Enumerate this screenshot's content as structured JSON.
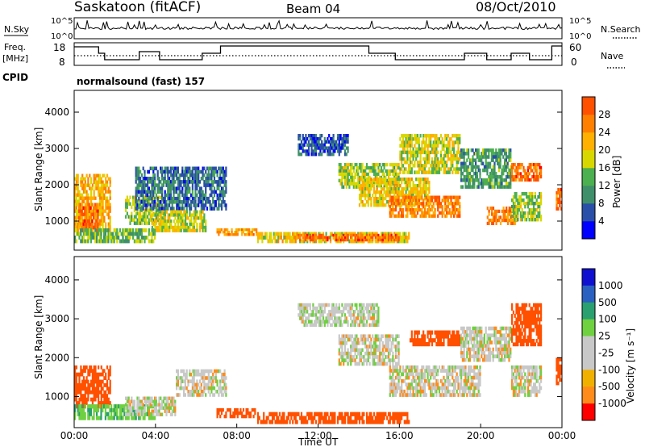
{
  "header": {
    "station": "Saskatoon (fitACF)",
    "beam": "Beam 04",
    "date": "08/Oct/2010"
  },
  "noise_panel": {
    "left_label": "N.Sky",
    "right_label": "N.Search",
    "y_ticks": [
      "10^5",
      "10^0"
    ],
    "right_ticks": [
      "10^5",
      "10^0"
    ]
  },
  "freq_panel": {
    "left_label_1": "Freq.",
    "left_label_2": "[MHz]",
    "y_ticks": [
      "18",
      "8"
    ],
    "right_label": "Nave",
    "right_ticks": [
      "60",
      "0"
    ]
  },
  "cpid": {
    "label": "CPID",
    "value": "normalsound (fast) 157"
  },
  "colors": {
    "power": [
      "#0000ff",
      "#2a4fa8",
      "#3f8f6a",
      "#4caf50",
      "#d8d800",
      "#ffb000",
      "#ff8000",
      "#ff5000",
      "#ff0000"
    ],
    "velocity": [
      "#ff0000",
      "#ff5000",
      "#ff8c1a",
      "#f0b000",
      "#c8c8c8",
      "#c8c8c8",
      "#6fd040",
      "#2aa070",
      "#2a60c0",
      "#1010d0"
    ]
  },
  "chart_data": [
    {
      "type": "heatmap",
      "name": "power",
      "ylabel": "Slant Range [km]",
      "y_ticks": [
        "1000",
        "2000",
        "3000",
        "4000"
      ],
      "ylim": [
        200,
        4600
      ],
      "colorbar_label": "Power [dB]",
      "colorbar_ticks": [
        "4",
        "8",
        "12",
        "16",
        "20",
        "24",
        "28"
      ],
      "colorbar_range": [
        0,
        32
      ],
      "regions": [
        {
          "t": [
            0.0,
            1.8
          ],
          "r": [
            700,
            2300
          ],
          "v": 22
        },
        {
          "t": [
            0.2,
            1.2
          ],
          "r": [
            600,
            1500
          ],
          "v": 28
        },
        {
          "t": [
            0.0,
            4.0
          ],
          "r": [
            400,
            800
          ],
          "v": 14
        },
        {
          "t": [
            2.5,
            4.5
          ],
          "r": [
            900,
            1700
          ],
          "v": 16
        },
        {
          "t": [
            3.0,
            7.5
          ],
          "r": [
            1300,
            2500
          ],
          "v": 8
        },
        {
          "t": [
            3.8,
            6.5
          ],
          "r": [
            700,
            1300
          ],
          "v": 18
        },
        {
          "t": [
            7.0,
            9.0
          ],
          "r": [
            600,
            800
          ],
          "v": 24
        },
        {
          "t": [
            9.0,
            16.5
          ],
          "r": [
            400,
            700
          ],
          "v": 20
        },
        {
          "t": [
            11.0,
            16.0
          ],
          "r": [
            450,
            650
          ],
          "v": 28
        },
        {
          "t": [
            11.0,
            13.5
          ],
          "r": [
            2800,
            3400
          ],
          "v": 6
        },
        {
          "t": [
            13.0,
            16.0
          ],
          "r": [
            1900,
            2600
          ],
          "v": 16
        },
        {
          "t": [
            14.0,
            17.5
          ],
          "r": [
            1400,
            2200
          ],
          "v": 20
        },
        {
          "t": [
            15.5,
            19.0
          ],
          "r": [
            1100,
            1700
          ],
          "v": 26
        },
        {
          "t": [
            16.0,
            19.0
          ],
          "r": [
            2300,
            3400
          ],
          "v": 18
        },
        {
          "t": [
            19.0,
            21.5
          ],
          "r": [
            1900,
            3000
          ],
          "v": 12
        },
        {
          "t": [
            20.3,
            21.8
          ],
          "r": [
            900,
            1400
          ],
          "v": 26
        },
        {
          "t": [
            21.5,
            23.0
          ],
          "r": [
            2100,
            2600
          ],
          "v": 28
        },
        {
          "t": [
            21.5,
            23.0
          ],
          "r": [
            1000,
            1800
          ],
          "v": 16
        },
        {
          "t": [
            23.7,
            24.0
          ],
          "r": [
            1300,
            2000
          ],
          "v": 28
        }
      ]
    },
    {
      "type": "heatmap",
      "name": "velocity",
      "ylabel": "Slant Range [km]",
      "y_ticks": [
        "1000",
        "2000",
        "3000",
        "4000"
      ],
      "ylim": [
        200,
        4600
      ],
      "xlabel": "Time UT",
      "x_ticks": [
        "00:00",
        "04:00",
        "08:00",
        "12:00",
        "16:00",
        "20:00",
        "00:00"
      ],
      "xlim": [
        0,
        24
      ],
      "colorbar_label": "Velocity [m s⁻¹]",
      "colorbar_ticks": [
        "1000",
        "500",
        "100",
        "25",
        "-25",
        "-100",
        "-500",
        "-1000"
      ],
      "regions": [
        {
          "t": [
            0.0,
            1.8
          ],
          "r": [
            700,
            1800
          ],
          "v": -300
        },
        {
          "t": [
            0.0,
            4.0
          ],
          "r": [
            400,
            800
          ],
          "v": 80
        },
        {
          "t": [
            2.5,
            5.0
          ],
          "r": [
            500,
            1000
          ],
          "v": 0
        },
        {
          "t": [
            5.0,
            7.5
          ],
          "r": [
            1000,
            1700
          ],
          "v": 0
        },
        {
          "t": [
            7.0,
            9.0
          ],
          "r": [
            450,
            700
          ],
          "v": -200
        },
        {
          "t": [
            9.0,
            16.5
          ],
          "r": [
            300,
            600
          ],
          "v": -150
        },
        {
          "t": [
            11.0,
            15.0
          ],
          "r": [
            2800,
            3400
          ],
          "v": 10
        },
        {
          "t": [
            13.0,
            16.0
          ],
          "r": [
            1800,
            2600
          ],
          "v": 0
        },
        {
          "t": [
            15.5,
            20.0
          ],
          "r": [
            1000,
            1800
          ],
          "v": 0
        },
        {
          "t": [
            16.5,
            19.0
          ],
          "r": [
            2300,
            2700
          ],
          "v": -200
        },
        {
          "t": [
            19.0,
            21.5
          ],
          "r": [
            1900,
            2800
          ],
          "v": 0
        },
        {
          "t": [
            21.5,
            23.0
          ],
          "r": [
            2300,
            3400
          ],
          "v": -300
        },
        {
          "t": [
            21.5,
            23.0
          ],
          "r": [
            1000,
            1800
          ],
          "v": 0
        },
        {
          "t": [
            23.7,
            24.0
          ],
          "r": [
            1300,
            2000
          ],
          "v": -300
        }
      ]
    }
  ]
}
